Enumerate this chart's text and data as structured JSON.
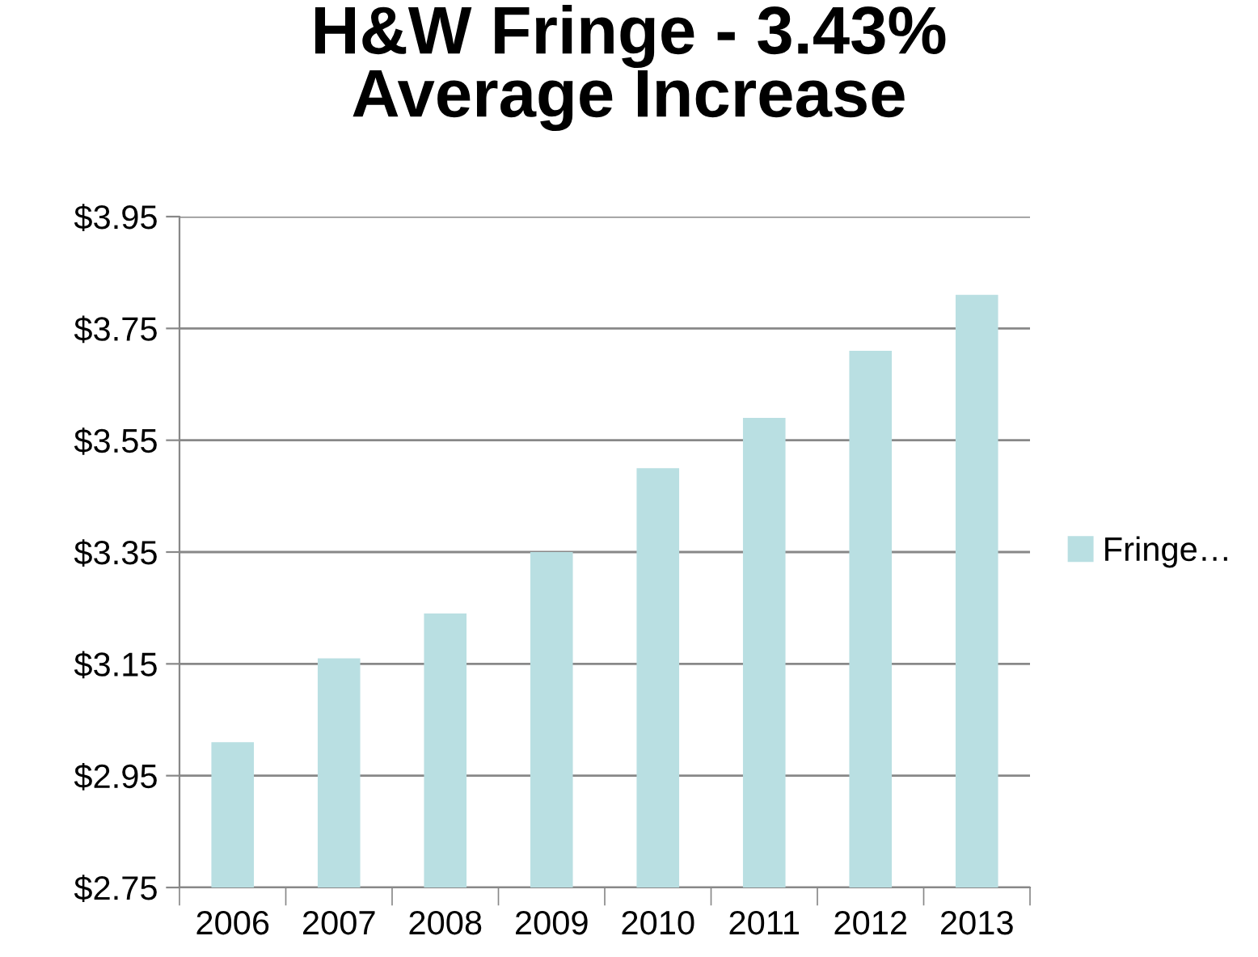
{
  "chart_data": {
    "type": "bar",
    "title": "H&W Fringe - 3.43%\nAverage Increase",
    "categories": [
      "2006",
      "2007",
      "2008",
      "2009",
      "2010",
      "2011",
      "2012",
      "2013"
    ],
    "series": [
      {
        "name": "Fringe…",
        "color": "#b9dfe2",
        "values": [
          3.01,
          3.16,
          3.24,
          3.35,
          3.5,
          3.59,
          3.71,
          3.81
        ]
      }
    ],
    "ylim": [
      2.75,
      3.95
    ],
    "yticks": [
      {
        "value": 2.75,
        "label": "$2.75"
      },
      {
        "value": 2.95,
        "label": "$2.95"
      },
      {
        "value": 3.15,
        "label": "$3.15"
      },
      {
        "value": 3.35,
        "label": "$3.35"
      },
      {
        "value": 3.55,
        "label": "$3.55"
      },
      {
        "value": 3.75,
        "label": "$3.75"
      },
      {
        "value": 3.95,
        "label": "$3.95"
      }
    ],
    "grid": "y",
    "legend": "right"
  }
}
